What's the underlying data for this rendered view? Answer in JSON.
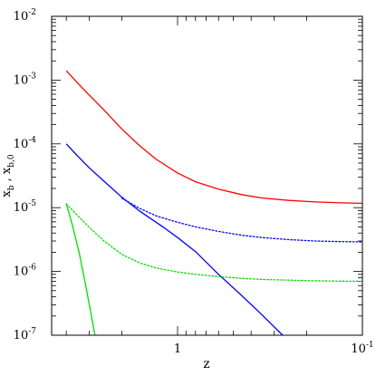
{
  "chart_data": {
    "type": "line",
    "title": "",
    "xlabel": "z",
    "ylabel": "x_b , x_b,0",
    "xscale": "log",
    "yscale": "log",
    "x_reversed": true,
    "xlim": [
      4.8,
      0.1
    ],
    "ylim": [
      1e-07,
      0.01
    ],
    "grid": false,
    "legend": "none",
    "x_ticks": [
      {
        "value": 1,
        "base": "1",
        "exp": ""
      },
      {
        "value": 0.1,
        "base": "10",
        "exp": "-1"
      }
    ],
    "y_ticks": [
      {
        "value": 1e-07,
        "base": "10",
        "exp": "-7"
      },
      {
        "value": 1e-06,
        "base": "10",
        "exp": "-6"
      },
      {
        "value": 1e-05,
        "base": "10",
        "exp": "-5"
      },
      {
        "value": 0.0001,
        "base": "10",
        "exp": "-4"
      },
      {
        "value": 0.001,
        "base": "10",
        "exp": "-3"
      },
      {
        "value": 0.01,
        "base": "10",
        "exp": "-2"
      }
    ],
    "series": [
      {
        "color": "#ff0000",
        "style": "solid",
        "x": [
          4.0,
          3.5,
          3.0,
          2.5,
          2.0,
          1.6,
          1.3,
          1.0,
          0.8,
          0.6,
          0.45,
          0.35,
          0.25,
          0.18,
          0.13,
          0.1
        ],
        "y": [
          0.0014,
          0.00092,
          0.00058,
          0.00034,
          0.00017,
          9.3e-05,
          5.7e-05,
          3.5e-05,
          2.55e-05,
          1.95e-05,
          1.6e-05,
          1.42e-05,
          1.3e-05,
          1.23e-05,
          1.19e-05,
          1.17e-05
        ]
      },
      {
        "color": "#0000ff",
        "style": "solid",
        "x": [
          4.0,
          3.5,
          3.0,
          2.5,
          2.0,
          1.6,
          1.2,
          1.0,
          0.8,
          0.6,
          0.45,
          0.35,
          0.27
        ],
        "y": [
          0.0001,
          6.6e-05,
          4.2e-05,
          2.6e-05,
          1.45e-05,
          8.8e-06,
          5e-06,
          3.4e-06,
          2.05e-06,
          9e-07,
          4.2e-07,
          2.1e-07,
          1e-07
        ]
      },
      {
        "color": "#0000ff",
        "style": "dotted",
        "x": [
          2.0,
          1.6,
          1.3,
          1.0,
          0.8,
          0.6,
          0.45,
          0.35,
          0.25,
          0.18,
          0.13,
          0.1
        ],
        "y": [
          1.4e-05,
          9.7e-06,
          7.4e-06,
          5.9e-06,
          5e-06,
          4.25e-06,
          3.7e-06,
          3.4e-06,
          3.15e-06,
          3e-06,
          2.93e-06,
          2.9e-06
        ]
      },
      {
        "color": "#00dd00",
        "style": "dotted",
        "x": [
          4.0,
          3.5,
          3.0,
          2.5,
          2.0,
          1.6,
          1.3,
          1.0,
          0.8,
          0.6,
          0.45,
          0.35,
          0.25,
          0.18,
          0.13,
          0.1
        ],
        "y": [
          1.15e-05,
          7.7e-06,
          4.9e-06,
          3e-06,
          1.85e-06,
          1.36e-06,
          1.13e-06,
          9.8e-07,
          9e-07,
          8.3e-07,
          7.8e-07,
          7.5e-07,
          7.3e-07,
          7.15e-07,
          7.05e-07,
          7e-07
        ]
      },
      {
        "color": "#00dd00",
        "style": "solid",
        "x": [
          4.0,
          3.7,
          3.4,
          3.2,
          3.0,
          2.8
        ],
        "y": [
          1.15e-05,
          5.2e-06,
          1.9e-06,
          8e-07,
          3e-07,
          1e-07
        ]
      }
    ]
  }
}
